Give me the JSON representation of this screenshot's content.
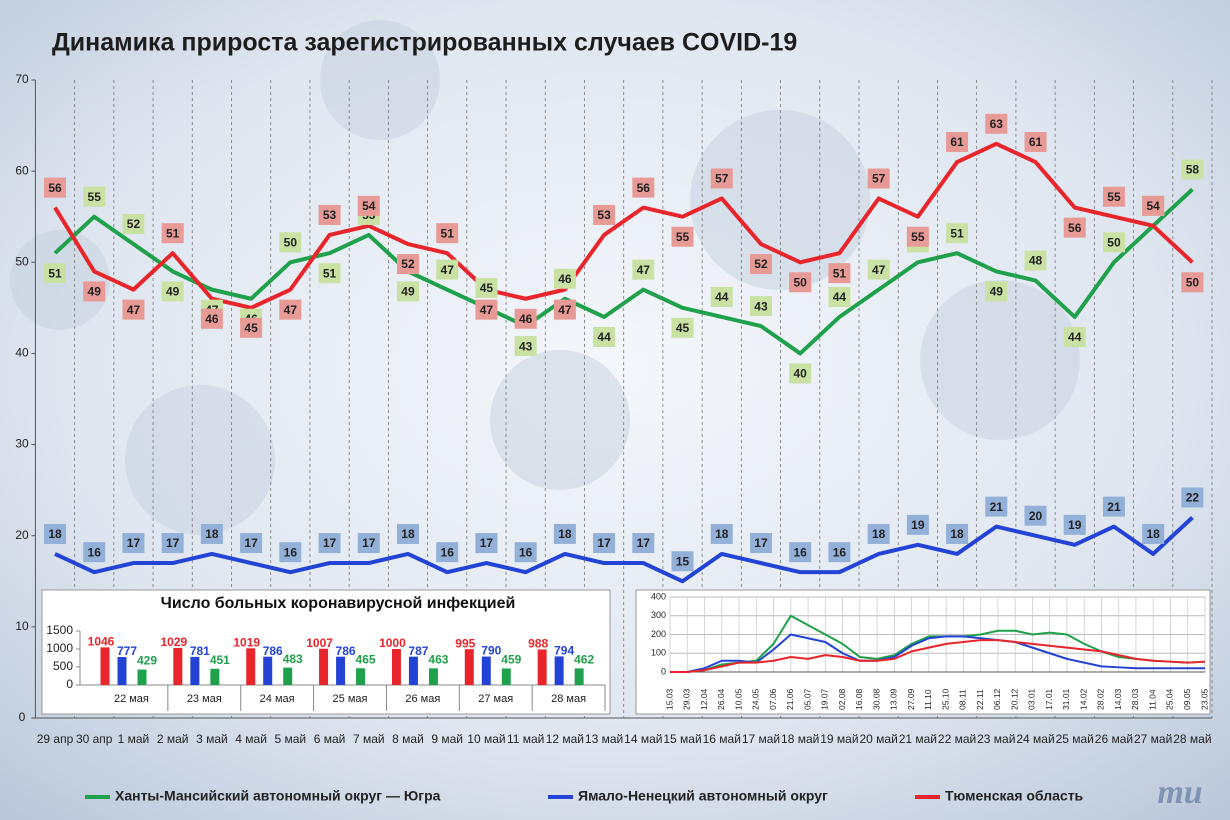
{
  "chart_data": [
    {
      "type": "line",
      "title": "Динамика прироста зарегистрированных случаев COVID-19",
      "categories": [
        "29 апр",
        "30 апр",
        "1 май",
        "2 май",
        "3 май",
        "4 май",
        "5 май",
        "6 май",
        "7 май",
        "8 май",
        "9 май",
        "10 май",
        "11 май",
        "12 май",
        "13 май",
        "14 май",
        "15 май",
        "16 май",
        "17 май",
        "18 май",
        "19 май",
        "20 май",
        "21 май",
        "22 май",
        "23 май",
        "24 май",
        "25 май",
        "26 май",
        "27 май",
        "28 май"
      ],
      "series": [
        {
          "name": "Ханты-Мансийский автономный округ — Югра",
          "color": "#1fa04a",
          "label_color": "#c9e2a4",
          "values": [
            51,
            55,
            52,
            49,
            47,
            46,
            50,
            51,
            53,
            49,
            47,
            45,
            43,
            46,
            44,
            47,
            45,
            44,
            43,
            40,
            44,
            47,
            50,
            51,
            49,
            48,
            44,
            50,
            54,
            58
          ]
        },
        {
          "name": "Ямало-Ненецкий автономный округ",
          "color": "#2343d6",
          "label_color": "#93b0d8",
          "values": [
            18,
            16,
            17,
            17,
            18,
            17,
            16,
            17,
            17,
            18,
            16,
            17,
            16,
            18,
            17,
            17,
            15,
            18,
            17,
            16,
            16,
            18,
            19,
            18,
            21,
            20,
            19,
            21,
            18,
            22
          ]
        },
        {
          "name": "Тюменская область",
          "color": "#e8252a",
          "label_color": "#e79a96",
          "values": [
            56,
            49,
            47,
            51,
            46,
            45,
            47,
            53,
            54,
            52,
            51,
            47,
            46,
            47,
            53,
            56,
            55,
            57,
            52,
            50,
            51,
            57,
            55,
            61,
            63,
            61,
            56,
            55,
            54,
            50
          ]
        }
      ],
      "ylim": [
        0,
        70
      ],
      "yticks": [
        0,
        10,
        20,
        30,
        40,
        50,
        60,
        70
      ],
      "data_labels": true,
      "legend": "bottom",
      "logo": "mu"
    },
    {
      "type": "bar",
      "title": "Число больных коронавирусной инфекцией",
      "categories": [
        "22 мая",
        "23 мая",
        "24 мая",
        "25 мая",
        "26 мая",
        "27 мая",
        "28 мая"
      ],
      "series": [
        {
          "color": "#e8252a",
          "values": [
            1046,
            1029,
            1019,
            1007,
            1000,
            995,
            988
          ]
        },
        {
          "color": "#2343d6",
          "values": [
            777,
            781,
            786,
            786,
            787,
            790,
            794
          ]
        },
        {
          "color": "#1fa04a",
          "values": [
            429,
            451,
            483,
            465,
            463,
            459,
            462
          ]
        }
      ],
      "ylim": [
        0,
        1500
      ],
      "yticks": [
        0,
        500,
        1000,
        1500
      ]
    },
    {
      "type": "line",
      "categories": [
        "15.03",
        "29.03",
        "12.04",
        "26.04",
        "10.05",
        "24.05",
        "07.06",
        "21.06",
        "05.07",
        "19.07",
        "02.08",
        "16.08",
        "30.08",
        "13.09",
        "27.09",
        "11.10",
        "25.10",
        "08.11",
        "22.11",
        "06.12",
        "20.12",
        "03.01",
        "17.01",
        "31.01",
        "14.02",
        "28.02",
        "14.03",
        "28.03",
        "11.04",
        "25.04",
        "09.05",
        "23.05"
      ],
      "series": [
        {
          "color": "#1fa04a",
          "values": [
            0,
            0,
            10,
            40,
            50,
            60,
            150,
            300,
            250,
            200,
            150,
            80,
            70,
            90,
            150,
            190,
            190,
            190,
            200,
            220,
            220,
            200,
            210,
            200,
            150,
            110,
            80,
            70,
            60,
            55,
            50,
            55
          ]
        },
        {
          "color": "#2343d6",
          "values": [
            0,
            0,
            20,
            60,
            60,
            50,
            120,
            200,
            180,
            160,
            100,
            60,
            60,
            80,
            140,
            180,
            190,
            190,
            180,
            170,
            160,
            130,
            100,
            70,
            50,
            30,
            25,
            20,
            20,
            20,
            20,
            20
          ]
        },
        {
          "color": "#e8252a",
          "values": [
            0,
            0,
            10,
            30,
            50,
            50,
            60,
            80,
            70,
            90,
            80,
            60,
            60,
            70,
            110,
            130,
            150,
            160,
            170,
            170,
            160,
            150,
            140,
            130,
            120,
            110,
            90,
            70,
            60,
            55,
            50,
            55
          ]
        }
      ],
      "ylim": [
        0,
        400
      ],
      "yticks": [
        0,
        100,
        200,
        300,
        400
      ],
      "data_labels": false
    }
  ]
}
